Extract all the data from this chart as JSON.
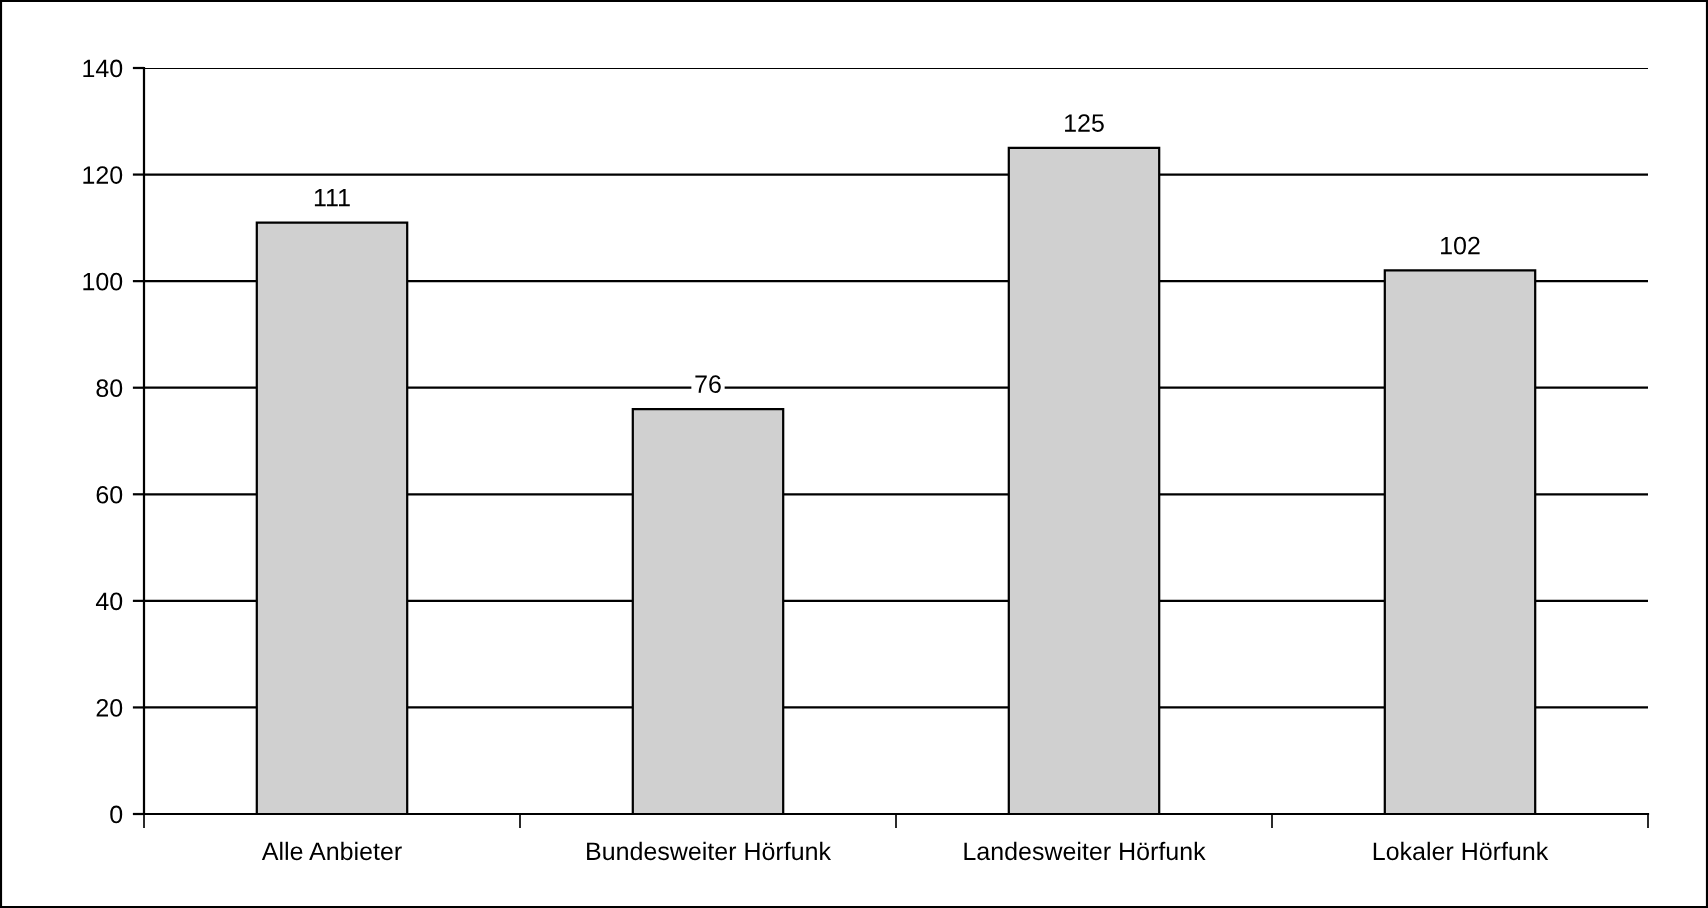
{
  "chart_data": {
    "type": "bar",
    "categories": [
      "Alle Anbieter",
      "Bundesweiter Hörfunk",
      "Landesweiter Hörfunk",
      "Lokaler Hörfunk"
    ],
    "values": [
      111,
      76,
      125,
      102
    ],
    "color": "#d0d0d0",
    "ylim": [
      0,
      140
    ],
    "yticks": [
      0,
      20,
      40,
      60,
      80,
      100,
      120,
      140
    ],
    "grid": "y",
    "data_labels": true
  }
}
